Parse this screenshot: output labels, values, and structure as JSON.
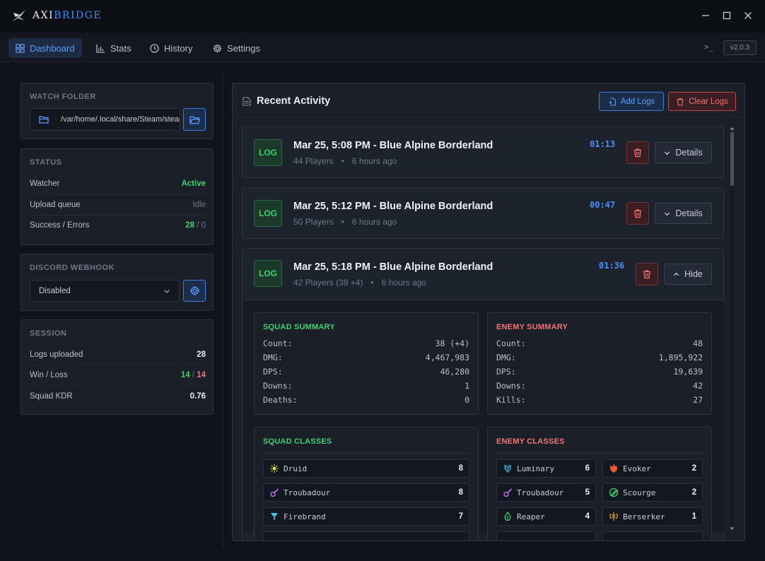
{
  "app": {
    "name_a": "AXI",
    "name_b": "BRIDGE",
    "version": "v2.0.3",
    "terminal_glyph": ">_"
  },
  "nav": {
    "tabs": [
      {
        "label": "Dashboard",
        "active": true
      },
      {
        "label": "Stats"
      },
      {
        "label": "History"
      },
      {
        "label": "Settings"
      }
    ]
  },
  "sidebar": {
    "watch": {
      "title": "WATCH FOLDER",
      "path": "/var/home/.local/share/Steam/steamapps"
    },
    "status": {
      "title": "STATUS",
      "rows": [
        {
          "label": "Watcher",
          "value": "Active"
        },
        {
          "label": "Upload queue",
          "value": "Idle"
        },
        {
          "label": "Success / Errors",
          "success": "28",
          "sep": " / ",
          "errors": "0"
        }
      ]
    },
    "webhook": {
      "title": "DISCORD WEBHOOK",
      "selected": "Disabled"
    },
    "session": {
      "title": "SESSION",
      "rows": [
        {
          "label": "Logs uploaded",
          "value": "28"
        },
        {
          "label": "Win / Loss",
          "win": "14",
          "sep": " / ",
          "loss": "14"
        },
        {
          "label": "Squad KDR",
          "value": "0.76"
        }
      ]
    }
  },
  "activity": {
    "title": "Recent Activity",
    "add_label": "Add Logs",
    "clear_label": "Clear Logs",
    "logs": [
      {
        "badge": "LOG",
        "title": "Mar 25, 5:08 PM - Blue Alpine Borderland",
        "players": "44 Players",
        "ago": "6 hours ago",
        "duration": "01:13",
        "toggle": "Details"
      },
      {
        "badge": "LOG",
        "title": "Mar 25, 5:12 PM - Blue Alpine Borderland",
        "players": "50 Players",
        "ago": "6 hours ago",
        "duration": "00:47",
        "toggle": "Details"
      },
      {
        "badge": "LOG",
        "title": "Mar 25, 5:18 PM - Blue Alpine Borderland",
        "players": "42 Players (38 +4)",
        "ago": "6 hours ago",
        "duration": "01:36",
        "toggle": "Hide"
      }
    ],
    "squad_summary": {
      "title": "SQUAD SUMMARY",
      "rows": [
        {
          "k": "Count:",
          "v": "38 (+4)"
        },
        {
          "k": "DMG:",
          "v": "4,467,983"
        },
        {
          "k": "DPS:",
          "v": "46,280"
        },
        {
          "k": "Downs:",
          "v": "1"
        },
        {
          "k": "Deaths:",
          "v": "0"
        }
      ]
    },
    "enemy_summary": {
      "title": "ENEMY SUMMARY",
      "rows": [
        {
          "k": "Count:",
          "v": "48"
        },
        {
          "k": "DMG:",
          "v": "1,895,922"
        },
        {
          "k": "DPS:",
          "v": "19,639"
        },
        {
          "k": "Downs:",
          "v": "42"
        },
        {
          "k": "Kills:",
          "v": "27"
        }
      ]
    },
    "squad_classes": {
      "title": "SQUAD CLASSES",
      "items": [
        {
          "name": "Druid",
          "count": "8",
          "icon": "druid-icon"
        },
        {
          "name": "Troubadour",
          "count": "8",
          "icon": "troubadour-icon"
        },
        {
          "name": "Firebrand",
          "count": "7",
          "icon": "firebrand-icon"
        }
      ]
    },
    "enemy_classes": {
      "title": "ENEMY CLASSES",
      "items": [
        {
          "name": "Luminary",
          "count": "6",
          "icon": "luminary-icon"
        },
        {
          "name": "Evoker",
          "count": "2",
          "icon": "evoker-icon"
        },
        {
          "name": "Troubadour",
          "count": "5",
          "icon": "troubadour-icon"
        },
        {
          "name": "Scourge",
          "count": "2",
          "icon": "scourge-icon"
        },
        {
          "name": "Reaper",
          "count": "4",
          "icon": "reaper-icon"
        },
        {
          "name": "Berserker",
          "count": "1",
          "icon": "berserker-icon"
        }
      ]
    }
  },
  "colors": {
    "accent": "#3f8cff",
    "success": "#3ecf72",
    "danger": "#f07575",
    "squad": "#3ecf72",
    "enemy": "#f07575"
  }
}
